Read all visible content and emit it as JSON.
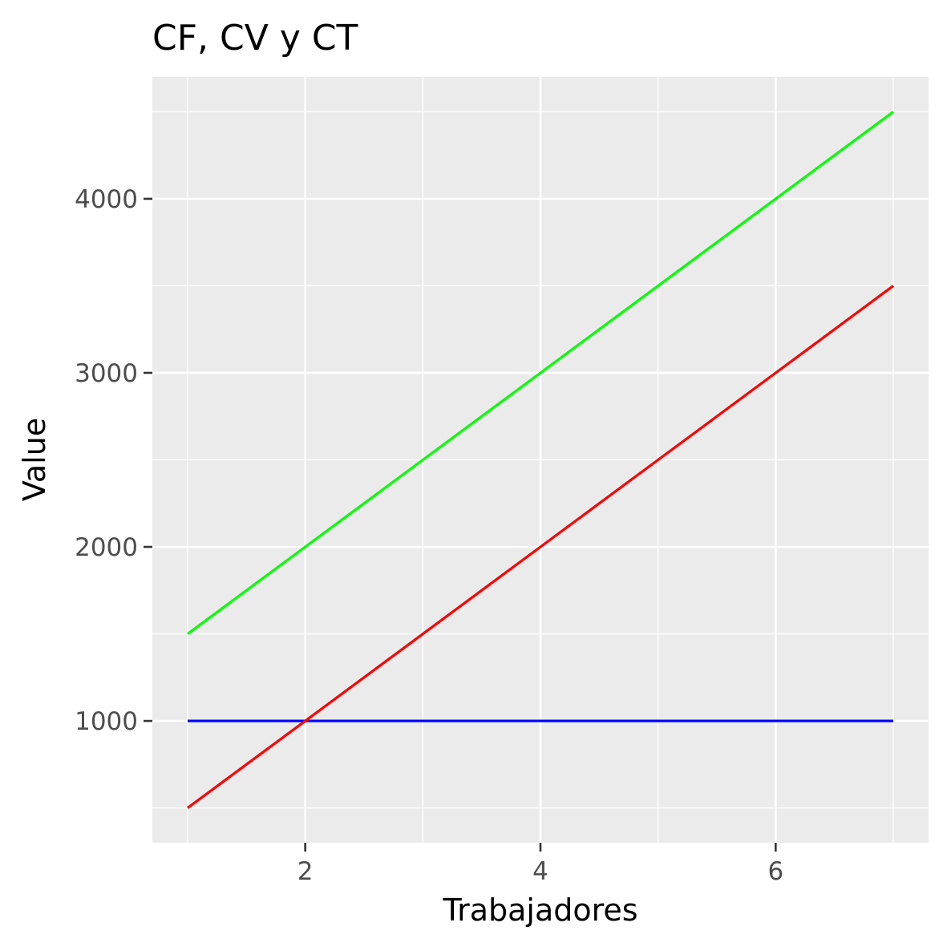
{
  "chart_data": {
    "type": "line",
    "title": "CF, CV y CT",
    "xlabel": "Trabajadores",
    "ylabel": "Value",
    "x": [
      1,
      2,
      3,
      4,
      5,
      6,
      7
    ],
    "xlim": [
      0.7,
      7.3
    ],
    "ylim": [
      300,
      4700
    ],
    "x_ticks": [
      2,
      4,
      6
    ],
    "x_tick_labels": [
      "2",
      "4",
      "6"
    ],
    "x_minor_ticks": [
      1,
      3,
      5,
      7
    ],
    "y_ticks": [
      1000,
      2000,
      3000,
      4000
    ],
    "y_tick_labels": [
      "1000",
      "2000",
      "3000",
      "4000"
    ],
    "y_minor_ticks": [
      500,
      1500,
      2500,
      3500,
      4500
    ],
    "grid": true,
    "legend": "none",
    "colors": {
      "panel_background": "#ebebeb",
      "grid": "#ffffff",
      "tick": "#333333"
    },
    "series": [
      {
        "color": "#0000ff",
        "values": [
          1000,
          1000,
          1000,
          1000,
          1000,
          1000,
          1000
        ]
      },
      {
        "color": "#ff0000",
        "values": [
          500,
          1000,
          1500,
          2000,
          2500,
          3000,
          3500
        ]
      },
      {
        "color": "#00ff00",
        "values": [
          1500,
          2000,
          2500,
          3000,
          3500,
          4000,
          4500
        ]
      }
    ]
  }
}
